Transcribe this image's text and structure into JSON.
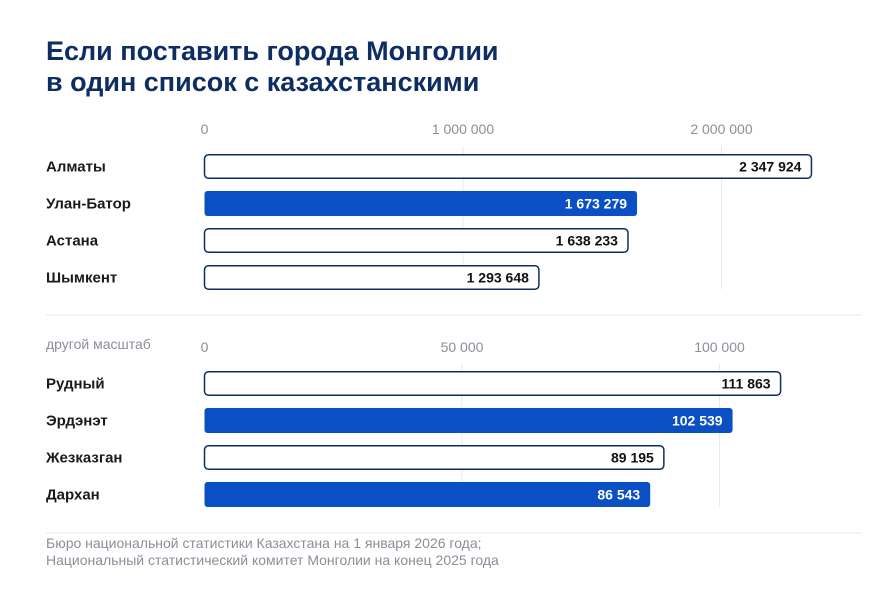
{
  "title": {
    "line1": "Если поставить города Монголии",
    "line2": "в один список с казахстанскими"
  },
  "colors": {
    "title": "#0d2d63",
    "accent": "#0b4fc4",
    "outline": "#0d2d63",
    "grid": "#e6e9ee",
    "tick": "#8a8f98",
    "label": "#1a1a1a"
  },
  "chart_data": [
    {
      "type": "bar",
      "orientation": "horizontal",
      "categories": [
        "Алматы",
        "Улан-Батор",
        "Астана",
        "Шымкент"
      ],
      "values": [
        2347924,
        1673279,
        1638233,
        1293648
      ],
      "value_labels": [
        "2 347 924",
        "1 673 279",
        "1 638 233",
        "1 293 648"
      ],
      "highlight": [
        false,
        true,
        false,
        false
      ],
      "ticks": [
        0,
        1000000,
        2000000
      ],
      "tick_labels": [
        "0",
        "1 000 000",
        "2 000 000"
      ],
      "xlim": [
        0,
        2400000
      ],
      "note": "",
      "grid": true
    },
    {
      "type": "bar",
      "orientation": "horizontal",
      "categories": [
        "Рудный",
        "Эрдэнэт",
        "Жезказган",
        "Дархан"
      ],
      "values": [
        111863,
        102539,
        89195,
        86543
      ],
      "value_labels": [
        "111 863",
        "102 539",
        "89 195",
        "86 543"
      ],
      "highlight": [
        false,
        true,
        false,
        true
      ],
      "ticks": [
        0,
        50000,
        100000
      ],
      "tick_labels": [
        "0",
        "50 000",
        "100 000"
      ],
      "xlim": [
        0,
        114000
      ],
      "note": "другой масштаб",
      "grid": true
    }
  ],
  "source": {
    "line1": "Бюро национальной статистики Казахстана на 1 января 2026 года;",
    "line2": "Национальный статистический комитет Монголии на конец 2025 года"
  }
}
